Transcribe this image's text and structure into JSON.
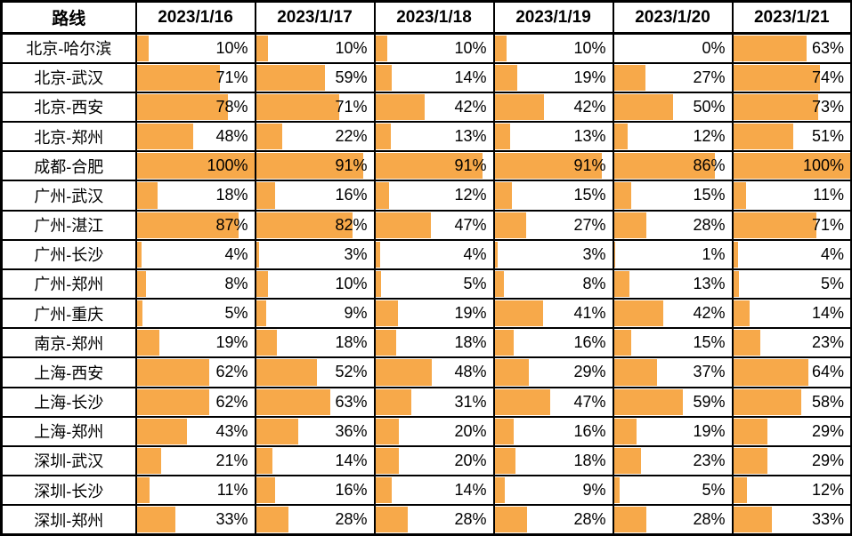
{
  "colors": {
    "bar_fill": "#F7A94A",
    "border": "#000000",
    "text": "#000000",
    "background": "#FFFFFF"
  },
  "chart_data": {
    "type": "table",
    "subtype": "data-bar-table",
    "row_header_label": "路线",
    "columns": [
      "2023/1/16",
      "2023/1/17",
      "2023/1/18",
      "2023/1/19",
      "2023/1/20",
      "2023/1/21"
    ],
    "value_unit": "%",
    "bar_scale": [
      0,
      100
    ],
    "legend_position": "none",
    "grid": true,
    "rows": [
      {
        "route": "北京-哈尔滨",
        "values": [
          10,
          10,
          10,
          10,
          0,
          63
        ],
        "labels": [
          "10%",
          "10%",
          "10%",
          "10%",
          "0%",
          "63%"
        ]
      },
      {
        "route": "北京-武汉",
        "values": [
          71,
          59,
          14,
          19,
          27,
          74
        ],
        "labels": [
          "71%",
          "59%",
          "14%",
          "19%",
          "27%",
          "74%"
        ]
      },
      {
        "route": "北京-西安",
        "values": [
          78,
          71,
          42,
          42,
          50,
          73
        ],
        "labels": [
          "78%",
          "71%",
          "42%",
          "42%",
          "50%",
          "73%"
        ]
      },
      {
        "route": "北京-郑州",
        "values": [
          48,
          22,
          13,
          13,
          12,
          51
        ],
        "labels": [
          "48%",
          "22%",
          "13%",
          "13%",
          "12%",
          "51%"
        ]
      },
      {
        "route": "成都-合肥",
        "values": [
          100,
          91,
          91,
          91,
          86,
          100
        ],
        "labels": [
          "100%",
          "91%",
          "91%",
          "91%",
          "86%",
          "100%"
        ]
      },
      {
        "route": "广州-武汉",
        "values": [
          18,
          16,
          12,
          15,
          15,
          11
        ],
        "labels": [
          "18%",
          "16%",
          "12%",
          "15%",
          "15%",
          "11%"
        ]
      },
      {
        "route": "广州-湛江",
        "values": [
          87,
          82,
          47,
          27,
          28,
          71
        ],
        "labels": [
          "87%",
          "82%",
          "47%",
          "27%",
          "28%",
          "71%"
        ]
      },
      {
        "route": "广州-长沙",
        "values": [
          4,
          3,
          4,
          3,
          1,
          4
        ],
        "labels": [
          "4%",
          "3%",
          "4%",
          "3%",
          "1%",
          "4%"
        ]
      },
      {
        "route": "广州-郑州",
        "values": [
          8,
          10,
          5,
          8,
          13,
          5
        ],
        "labels": [
          "8%",
          "10%",
          "5%",
          "8%",
          "13%",
          "5%"
        ]
      },
      {
        "route": "广州-重庆",
        "values": [
          5,
          9,
          19,
          41,
          42,
          14
        ],
        "labels": [
          "5%",
          "9%",
          "19%",
          "41%",
          "42%",
          "14%"
        ]
      },
      {
        "route": "南京-郑州",
        "values": [
          19,
          18,
          18,
          16,
          15,
          23
        ],
        "labels": [
          "19%",
          "18%",
          "18%",
          "16%",
          "15%",
          "23%"
        ]
      },
      {
        "route": "上海-西安",
        "values": [
          62,
          52,
          48,
          29,
          37,
          64
        ],
        "labels": [
          "62%",
          "52%",
          "48%",
          "29%",
          "37%",
          "64%"
        ]
      },
      {
        "route": "上海-长沙",
        "values": [
          62,
          63,
          31,
          47,
          59,
          58
        ],
        "labels": [
          "62%",
          "63%",
          "31%",
          "47%",
          "59%",
          "58%"
        ]
      },
      {
        "route": "上海-郑州",
        "values": [
          43,
          36,
          20,
          16,
          19,
          29
        ],
        "labels": [
          "43%",
          "36%",
          "20%",
          "16%",
          "19%",
          "29%"
        ]
      },
      {
        "route": "深圳-武汉",
        "values": [
          21,
          14,
          20,
          18,
          23,
          29
        ],
        "labels": [
          "21%",
          "14%",
          "20%",
          "18%",
          "23%",
          "29%"
        ]
      },
      {
        "route": "深圳-长沙",
        "values": [
          11,
          16,
          14,
          9,
          5,
          12
        ],
        "labels": [
          "11%",
          "16%",
          "14%",
          "9%",
          "5%",
          "12%"
        ]
      },
      {
        "route": "深圳-郑州",
        "values": [
          33,
          28,
          28,
          28,
          28,
          33
        ],
        "labels": [
          "33%",
          "28%",
          "28%",
          "28%",
          "28%",
          "33%"
        ]
      }
    ]
  }
}
